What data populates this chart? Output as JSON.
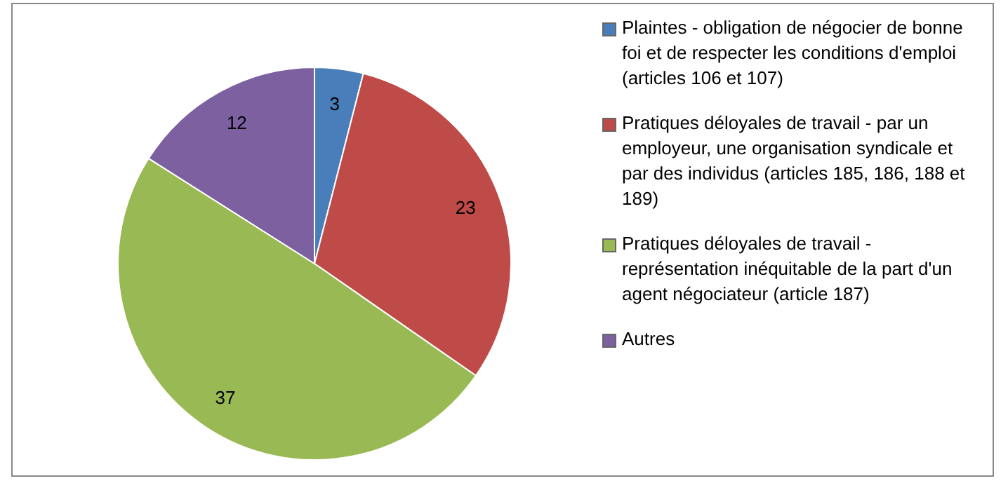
{
  "chart_data": {
    "type": "pie",
    "categories": [
      "Plaintes - obligation de négocier de bonne foi et de respecter les conditions d'emploi (articles 106 et 107)",
      "Pratiques déloyales de travail - par un employeur, une organisation syndicale et par des individus (articles 185, 186, 188 et 189)",
      "Pratiques déloyales de travail - représentation inéquitable de la part d'un agent négociateur (article 187)",
      "Autres"
    ],
    "values": [
      3,
      23,
      37,
      12
    ],
    "colors": [
      "#4a7ebb",
      "#be4b48",
      "#98b954",
      "#7d60a0"
    ],
    "data_labels": true,
    "legend": "right"
  }
}
